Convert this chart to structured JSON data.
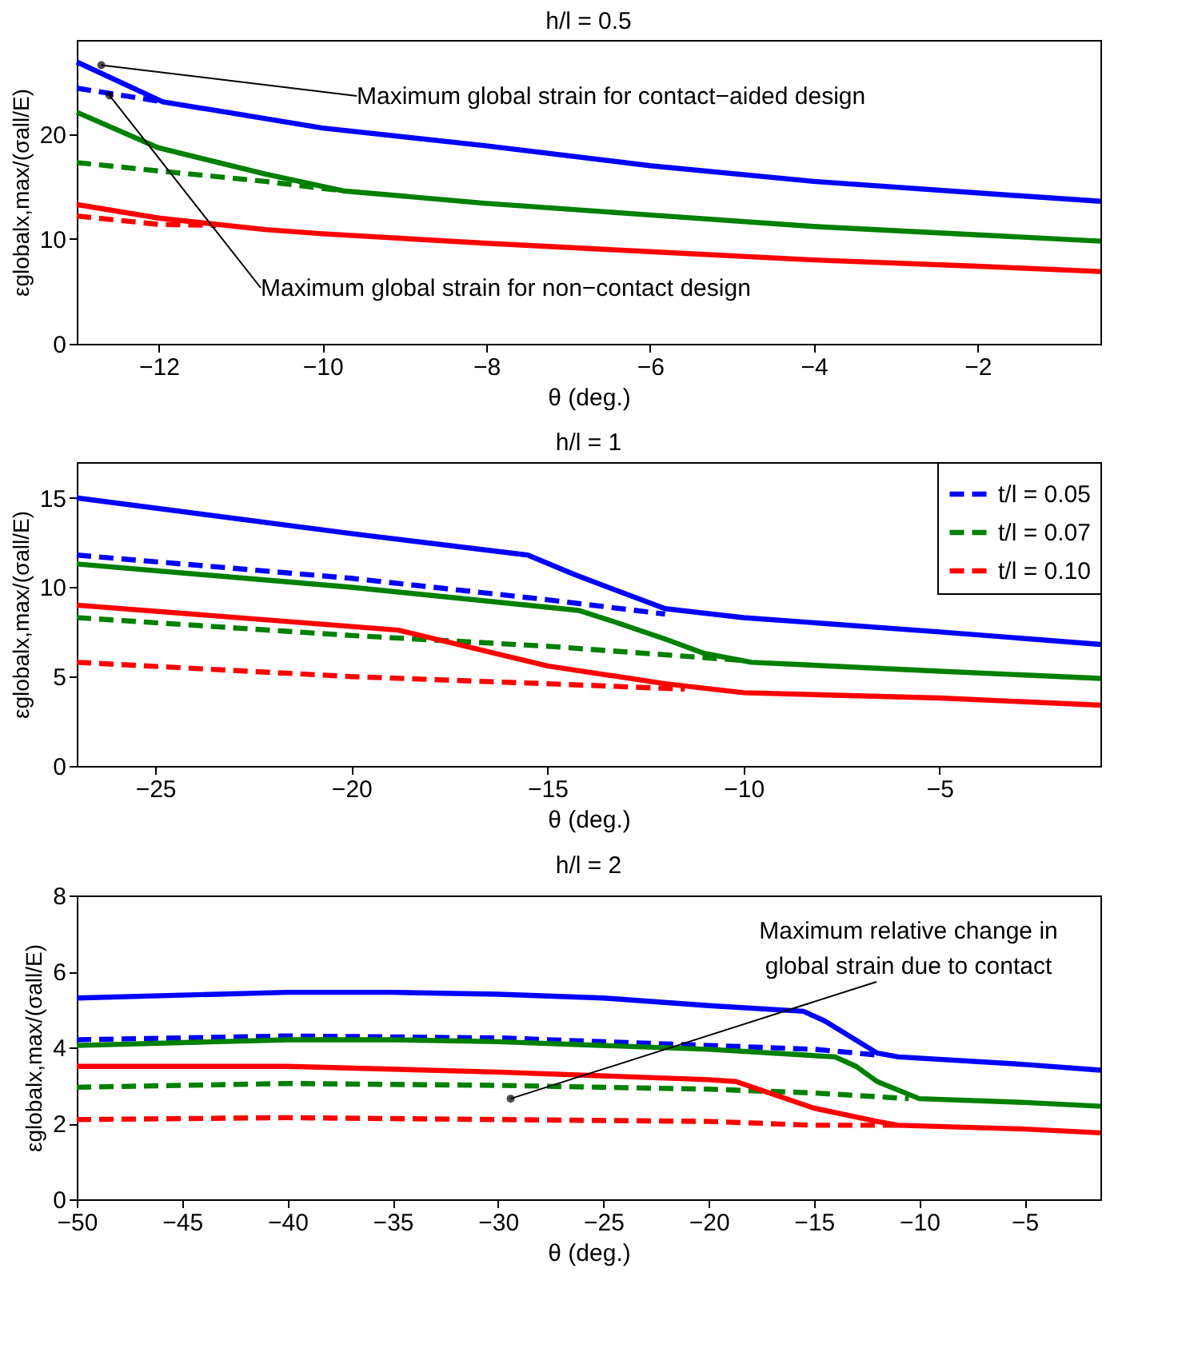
{
  "chart_data": [
    {
      "type": "line",
      "title": "h/l = 0.5",
      "xlabel": "θ (deg.)",
      "ylabel": "εglobalx,max/(σall/E)",
      "xlim": [
        -13,
        -0.5
      ],
      "ylim": [
        0,
        29
      ],
      "xticks": [
        -12,
        -10,
        -8,
        -6,
        -4,
        -2
      ],
      "yticks": [
        0,
        10,
        20
      ],
      "legend": false,
      "annotations": [
        {
          "text": "Maximum global strain for contact−aided design",
          "x": -12.7,
          "y": 26.6
        },
        {
          "text": "Maximum global strain for non−contact design",
          "x": -12.6,
          "y": 23.7
        }
      ],
      "series": [
        {
          "color": "#0000ff",
          "line_style": "solid",
          "x": [
            -13,
            -11.95,
            -10,
            -8,
            -6,
            -4,
            -2,
            -0.5
          ],
          "values": [
            26.9,
            23.1,
            20.6,
            18.9,
            17.0,
            15.5,
            14.4,
            13.6
          ]
        },
        {
          "color": "#0000ff",
          "line_style": "dashed",
          "x": [
            -13,
            -11.95
          ],
          "values": [
            24.4,
            23.1
          ]
        },
        {
          "color": "#008000",
          "line_style": "solid",
          "x": [
            -13,
            -12,
            -10.7,
            -9.75,
            -8,
            -6,
            -4,
            -2,
            -0.5
          ],
          "values": [
            22.1,
            18.7,
            16.2,
            14.6,
            13.4,
            12.3,
            11.2,
            10.4,
            9.8
          ]
        },
        {
          "color": "#008000",
          "line_style": "dashed",
          "x": [
            -13,
            -12,
            -10.7,
            -9.75
          ],
          "values": [
            17.3,
            16.5,
            15.5,
            14.6
          ]
        },
        {
          "color": "#ff0000",
          "line_style": "solid",
          "x": [
            -13,
            -12,
            -10.7,
            -10,
            -8,
            -6,
            -4,
            -2,
            -0.5
          ],
          "values": [
            13.3,
            12.0,
            10.9,
            10.5,
            9.6,
            8.8,
            8.0,
            7.4,
            6.9
          ]
        },
        {
          "color": "#ff0000",
          "line_style": "dashed",
          "x": [
            -13,
            -12,
            -11.3
          ],
          "values": [
            12.2,
            11.4,
            11.3
          ]
        }
      ]
    },
    {
      "type": "line",
      "title": "h/l = 1",
      "xlabel": "θ (deg.)",
      "ylabel": "εglobalx,max/(σall/E)",
      "xlim": [
        -27,
        -0.9
      ],
      "ylim": [
        0,
        17
      ],
      "xticks": [
        -25,
        -20,
        -15,
        -10,
        -5
      ],
      "yticks": [
        0,
        5,
        10,
        15
      ],
      "legend": "top right",
      "series": [
        {
          "color": "#0000ff",
          "line_style": "solid",
          "x": [
            -27,
            -20,
            -15.5,
            -14.3,
            -12,
            -10,
            -5,
            -0.9
          ],
          "values": [
            15.0,
            13.0,
            11.8,
            10.7,
            8.8,
            8.3,
            7.5,
            6.8
          ]
        },
        {
          "name": "t/l = 0.05",
          "color": "#0000ff",
          "line_style": "dashed",
          "x": [
            -27,
            -20,
            -15,
            -12
          ],
          "values": [
            11.8,
            10.5,
            9.3,
            8.5
          ]
        },
        {
          "color": "#008000",
          "line_style": "solid",
          "x": [
            -27,
            -20,
            -14.2,
            -13.2,
            -12,
            -11,
            -9.8,
            -5,
            -0.9
          ],
          "values": [
            11.3,
            10.0,
            8.7,
            8.0,
            7.1,
            6.3,
            5.8,
            5.3,
            4.9
          ]
        },
        {
          "name": "t/l = 0.07",
          "color": "#008000",
          "line_style": "dashed",
          "x": [
            -27,
            -20,
            -15,
            -10
          ],
          "values": [
            8.3,
            7.3,
            6.7,
            5.9
          ]
        },
        {
          "color": "#ff0000",
          "line_style": "solid",
          "x": [
            -27,
            -18.8,
            -15,
            -12,
            -10,
            -5,
            -0.9
          ],
          "values": [
            9.0,
            7.6,
            5.6,
            4.6,
            4.1,
            3.8,
            3.4
          ]
        },
        {
          "name": "t/l = 0.10",
          "color": "#ff0000",
          "line_style": "dashed",
          "x": [
            -27,
            -20,
            -15,
            -11.5
          ],
          "values": [
            5.8,
            5.0,
            4.6,
            4.3
          ]
        }
      ]
    },
    {
      "type": "line",
      "title": "h/l = 2",
      "xlabel": "θ (deg.)",
      "ylabel": "εglobalx,max/(σall/E)",
      "xlim": [
        -50,
        -1.4
      ],
      "ylim": [
        0,
        8
      ],
      "xticks": [
        -50,
        -45,
        -40,
        -35,
        -30,
        -25,
        -20,
        -15,
        -10,
        -5
      ],
      "yticks": [
        0,
        2,
        4,
        6,
        8
      ],
      "legend": false,
      "annotations": [
        {
          "text": "Maximum relative change in\nglobal strain due to contact",
          "x": -29.4,
          "y": 2.65
        }
      ],
      "series": [
        {
          "color": "#0000ff",
          "line_style": "solid",
          "x": [
            -50,
            -40,
            -35,
            -30,
            -25,
            -20,
            -15.5,
            -14.5,
            -12,
            -11,
            -5,
            -1.4
          ],
          "values": [
            5.3,
            5.45,
            5.45,
            5.4,
            5.3,
            5.1,
            4.95,
            4.7,
            3.85,
            3.75,
            3.55,
            3.4
          ]
        },
        {
          "color": "#0000ff",
          "line_style": "dashed",
          "x": [
            -50,
            -40,
            -30,
            -20,
            -15,
            -12
          ],
          "values": [
            4.2,
            4.3,
            4.25,
            4.05,
            3.95,
            3.8
          ]
        },
        {
          "color": "#008000",
          "line_style": "solid",
          "x": [
            -50,
            -40,
            -35,
            -30,
            -20,
            -14,
            -13,
            -12,
            -10,
            -5,
            -1.4
          ],
          "values": [
            4.05,
            4.2,
            4.2,
            4.15,
            3.95,
            3.75,
            3.5,
            3.1,
            2.65,
            2.55,
            2.45
          ]
        },
        {
          "color": "#008000",
          "line_style": "dashed",
          "x": [
            -50,
            -40,
            -30,
            -20,
            -15,
            -10.5
          ],
          "values": [
            2.95,
            3.05,
            3.0,
            2.9,
            2.8,
            2.65
          ]
        },
        {
          "color": "#ff0000",
          "line_style": "solid",
          "x": [
            -50,
            -40,
            -30,
            -20,
            -18.7,
            -15,
            -12,
            -11,
            -5,
            -1.4
          ],
          "values": [
            3.5,
            3.5,
            3.35,
            3.15,
            3.1,
            2.4,
            2.05,
            1.95,
            1.85,
            1.75
          ]
        },
        {
          "color": "#ff0000",
          "line_style": "dashed",
          "x": [
            -50,
            -40,
            -30,
            -20,
            -15,
            -11
          ],
          "values": [
            2.1,
            2.15,
            2.1,
            2.05,
            1.95,
            1.95
          ]
        }
      ]
    }
  ]
}
